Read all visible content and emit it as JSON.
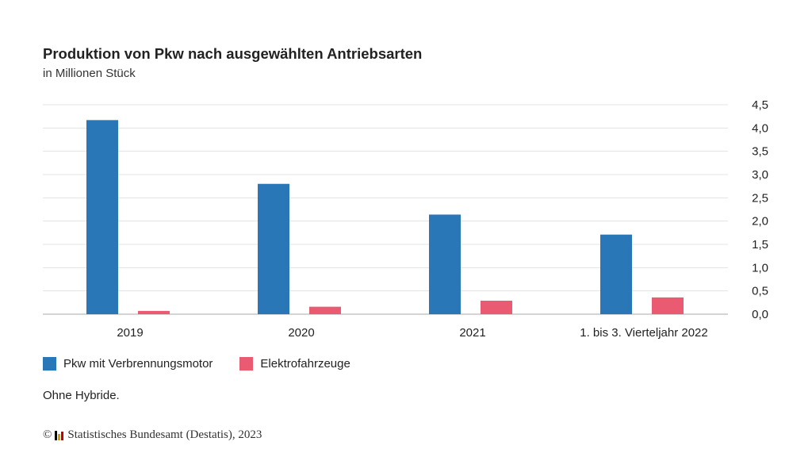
{
  "source": {
    "copyright_symbol": "©",
    "text": "Statistisches Bundesamt (Destatis), 2023",
    "logo_icon": "destatis-logo-icon",
    "logo_colors": [
      "#000000",
      "#d6a000",
      "#c40000"
    ]
  },
  "note": "Ohne Hybride.",
  "colors": {
    "gridline": "#e3e3e3",
    "axis": "#aaaaaa"
  },
  "chart_data": {
    "type": "bar",
    "title": "Produktion von Pkw nach ausgewählten Antriebsarten",
    "subtitle": "in Millionen Stück",
    "xlabel": "",
    "ylabel": "",
    "categories": [
      "2019",
      "2020",
      "2021",
      "1. bis 3. Vierteljahr 2022"
    ],
    "series": [
      {
        "name": "Pkw mit Verbrennungsmotor",
        "color": "#2a77b8",
        "values": [
          4.17,
          2.8,
          2.14,
          1.71
        ]
      },
      {
        "name": "Elektrofahrzeuge",
        "color": "#ea5b72",
        "values": [
          0.07,
          0.16,
          0.29,
          0.36
        ]
      }
    ],
    "ylim": [
      0,
      4.5
    ],
    "yticks": [
      "0,0",
      "0,5",
      "1,0",
      "1,5",
      "2,0",
      "2,5",
      "3,0",
      "3,5",
      "4,0",
      "4,5"
    ],
    "y_axis_side": "right",
    "grid": true,
    "legend_position": "bottom-left"
  }
}
